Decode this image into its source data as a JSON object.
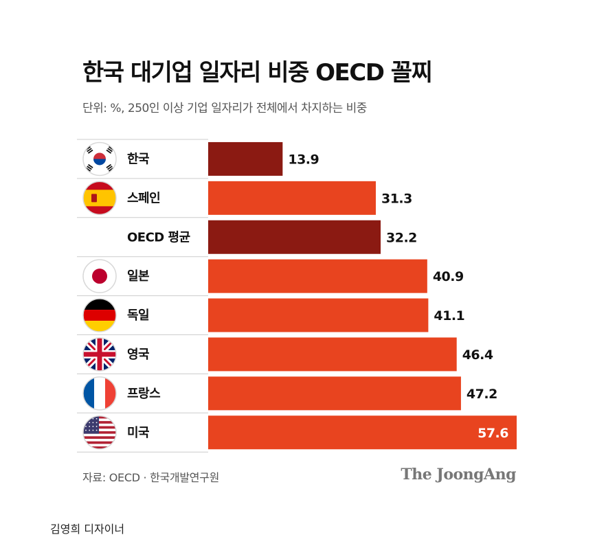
{
  "header": {
    "title": "한국 대기업 일자리 비중 OECD 꼴찌",
    "subtitle": "단위: %, 250인 이상 기업 일자리가 전체에서 차지하는 비중"
  },
  "footer": {
    "source": "자료: OECD · 한국개발연구원",
    "brand": "The JoongAng",
    "credit": "김영희 디자이너"
  },
  "colors": {
    "highlight": "#8b1a12",
    "default": "#e8441f",
    "label_light": "#ffffff",
    "label_dark": "#111111",
    "divider": "#cccccc"
  },
  "chart_data": {
    "type": "bar",
    "orientation": "horizontal",
    "categories": [
      "한국",
      "스페인",
      "OECD 평균",
      "일본",
      "독일",
      "영국",
      "프랑스",
      "미국"
    ],
    "values": [
      13.9,
      31.3,
      32.2,
      40.9,
      41.1,
      46.4,
      47.2,
      57.6
    ],
    "data_labels": [
      "13.9",
      "31.3",
      "32.2",
      "40.9",
      "41.1",
      "46.4",
      "47.2",
      "57.6"
    ],
    "highlighted": [
      "한국",
      "OECD 평균"
    ],
    "flags": [
      "korea-flag-icon",
      "spain-flag-icon",
      "",
      "japan-flag-icon",
      "germany-flag-icon",
      "uk-flag-icon",
      "france-flag-icon",
      "usa-flag-icon"
    ],
    "xlim": [
      0,
      57.6
    ],
    "grid": false,
    "legend": "none"
  }
}
